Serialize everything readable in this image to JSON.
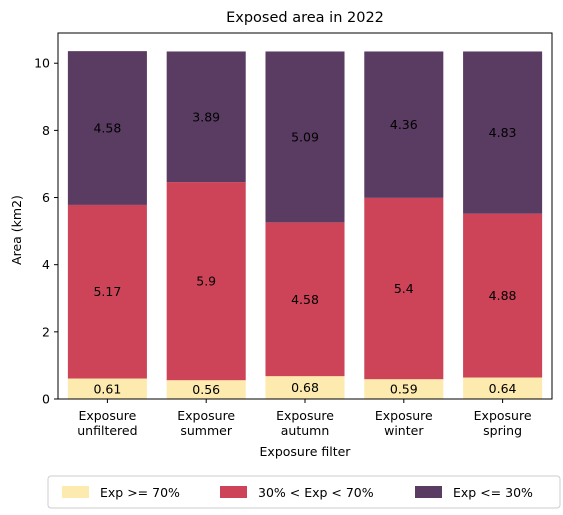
{
  "chart_data": {
    "type": "bar",
    "stacked": true,
    "title": "Exposed area in 2022",
    "xlabel": "Exposure filter",
    "ylabel": "Area (km2)",
    "ylim": [
      0,
      10.9
    ],
    "yticks": [
      "0",
      "2",
      "4",
      "6",
      "8",
      "10"
    ],
    "categories": [
      [
        "Exposure",
        "unfiltered"
      ],
      [
        "Exposure",
        "summer"
      ],
      [
        "Exposure",
        "autumn"
      ],
      [
        "Exposure",
        "winter"
      ],
      [
        "Exposure",
        "spring"
      ]
    ],
    "series": [
      {
        "name": "Exp >= 70%",
        "color": "#fdeaae",
        "values": [
          0.61,
          0.56,
          0.68,
          0.59,
          0.64
        ],
        "labels": [
          "0.61",
          "0.56",
          "0.68",
          "0.59",
          "0.64"
        ]
      },
      {
        "name": "30% < Exp < 70%",
        "color": "#cd4458",
        "values": [
          5.17,
          5.9,
          4.58,
          5.4,
          4.88
        ],
        "labels": [
          "5.17",
          "5.9",
          "4.58",
          "5.4",
          "4.88"
        ]
      },
      {
        "name": "Exp <= 30%",
        "color": "#5a3c63",
        "values": [
          4.58,
          3.89,
          5.09,
          4.36,
          4.83
        ],
        "labels": [
          "4.58",
          "3.89",
          "5.09",
          "4.36",
          "4.83"
        ]
      }
    ],
    "grid": false,
    "legend_position": "bottom-center"
  }
}
